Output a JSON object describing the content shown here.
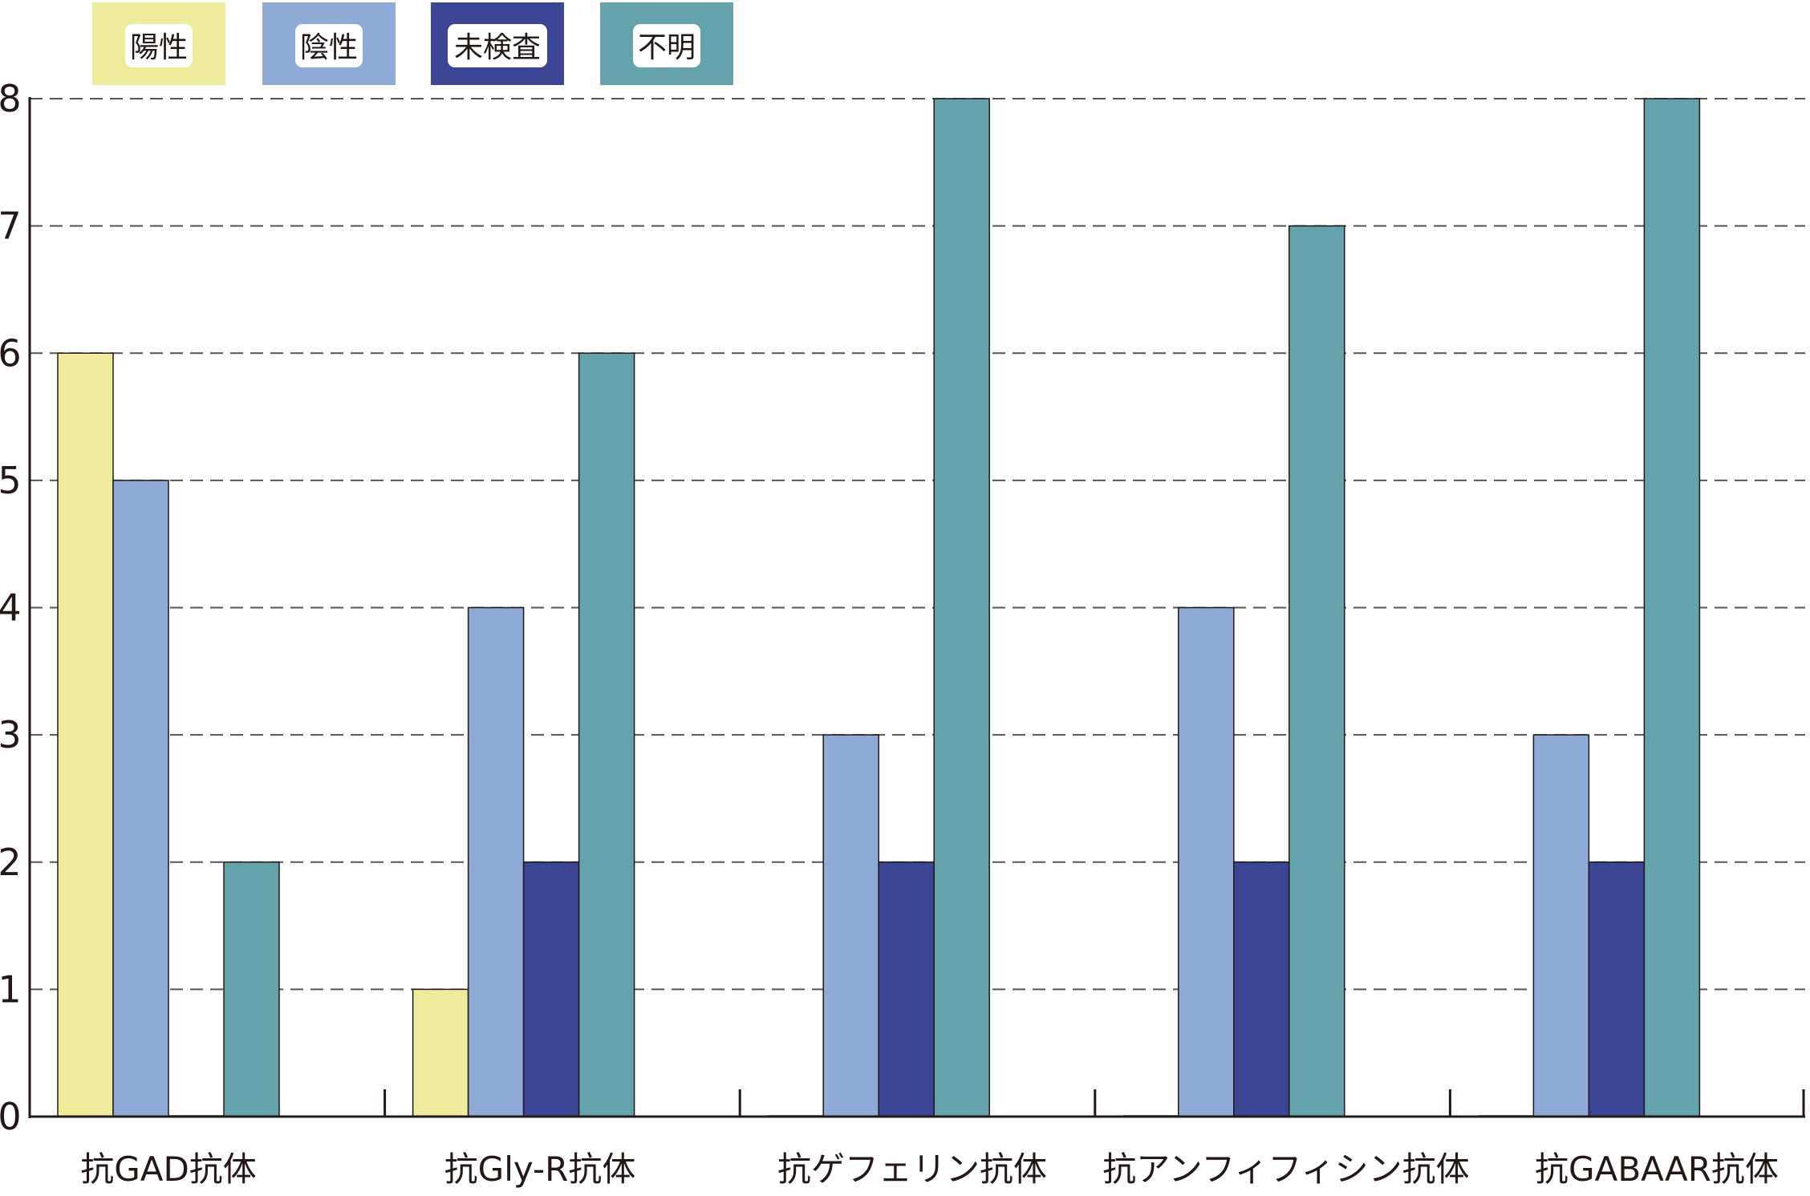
{
  "chart_data": {
    "type": "bar",
    "title": "",
    "xlabel": "",
    "ylabel": "",
    "categories": [
      "抗GAD抗体",
      "抗Gly-R抗体",
      "抗ゲフェリン抗体",
      "抗アンフィフィシン抗体",
      "抗GABAAR抗体"
    ],
    "series": [
      {
        "name": "陽性",
        "color": "#eeec9a",
        "values": [
          6,
          1,
          0,
          0,
          0
        ]
      },
      {
        "name": "陰性",
        "color": "#8eaad6",
        "values": [
          5,
          4,
          3,
          4,
          3
        ]
      },
      {
        "name": "未検査",
        "color": "#3b4594",
        "values": [
          0,
          2,
          2,
          2,
          2
        ]
      },
      {
        "name": "不明",
        "color": "#64a3ab",
        "values": [
          2,
          6,
          8,
          7,
          8
        ]
      }
    ],
    "ylim": [
      0,
      8
    ],
    "yticks": [
      "0",
      "1",
      "2",
      "3",
      "4",
      "5",
      "6",
      "7",
      "8"
    ],
    "grid": true,
    "grid_style": "dashed",
    "legend_position": "top-left"
  }
}
